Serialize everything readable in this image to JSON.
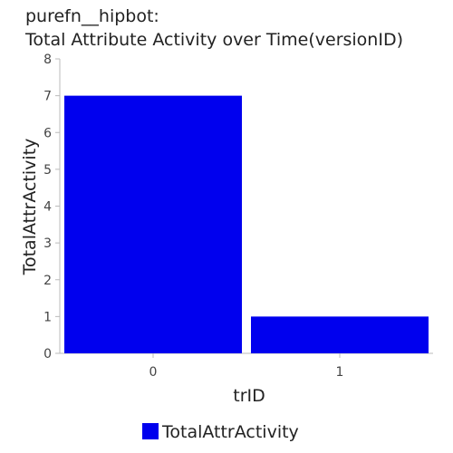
{
  "title_lines": [
    "purefn__hipbot:",
    "Total Attribute Activity over Time(versionID)"
  ],
  "chart_data": {
    "type": "bar",
    "categories": [
      "0",
      "1"
    ],
    "series": [
      {
        "name": "TotalAttrActivity",
        "values": [
          7,
          1
        ],
        "color": "#0000ee"
      }
    ],
    "xlabel": "trID",
    "ylabel": "TotalAttrActivity",
    "ylim": [
      0,
      8
    ],
    "yticks": [
      "0",
      "1",
      "2",
      "3",
      "4",
      "5",
      "6",
      "7",
      "8"
    ],
    "grid": false,
    "legend": "bottom"
  }
}
